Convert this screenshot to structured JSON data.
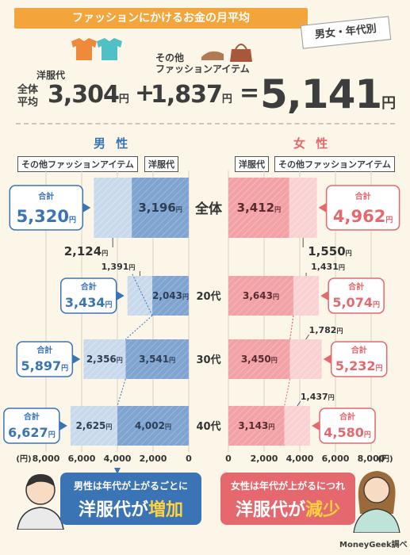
{
  "banner": "ファッションにかけるお金の月平均",
  "tag": "男女・年代別",
  "overall": {
    "label": "全体\n平均",
    "clothing_label": "洋服代",
    "clothing_value": "3,304",
    "other_label": "その他\nファッションアイテム",
    "other_value": "1,837",
    "total_value": "5,141",
    "yen": "円",
    "plus": "+",
    "equals": "="
  },
  "male_title": "男 性",
  "female_title": "女 性",
  "male_legend": {
    "other": "その他ファッションアイテム",
    "clothing": "洋服代"
  },
  "female_legend": {
    "clothing": "洋服代",
    "other": "その他ファッションアイテム"
  },
  "total_label": "合計",
  "colors": {
    "male_clothing": "#7fa4cf",
    "male_other": "#c9d9ec",
    "female_clothing": "#f2a1a6",
    "female_other": "#f9d1d2",
    "male_accent": "#3b74b5",
    "female_accent": "#e4686d",
    "banner": "#f3a43a"
  },
  "chart_data": {
    "type": "bar",
    "categories": [
      "全体",
      "20代",
      "30代",
      "40代"
    ],
    "unit": "円",
    "male": {
      "series": [
        {
          "name": "洋服代",
          "values": [
            3196,
            2043,
            3541,
            4002
          ]
        },
        {
          "name": "その他ファッションアイテム",
          "values": [
            2124,
            1391,
            2356,
            2625
          ]
        }
      ],
      "totals": [
        5320,
        3434,
        5897,
        6627
      ],
      "value_labels": {
        "clothing": [
          "3,196",
          "2,043",
          "3,541",
          "4,002"
        ],
        "other": [
          "2,124",
          "1,391",
          "2,356",
          "2,625"
        ]
      },
      "total_labels": [
        "5,320",
        "3,434",
        "5,897",
        "6,627"
      ]
    },
    "female": {
      "series": [
        {
          "name": "洋服代",
          "values": [
            3412,
            3643,
            3450,
            3143
          ]
        },
        {
          "name": "その他ファッションアイテム",
          "values": [
            1550,
            1431,
            1782,
            1437
          ]
        }
      ],
      "totals": [
        4962,
        5074,
        5232,
        4580
      ],
      "value_labels": {
        "clothing": [
          "3,412",
          "3,643",
          "3,450",
          "3,143"
        ],
        "other": [
          "1,550",
          "1,431",
          "1,782",
          "1,437"
        ]
      },
      "total_labels": [
        "4,962",
        "5,074",
        "5,232",
        "4,580"
      ]
    },
    "male_axis": {
      "ticks": [
        "8,000",
        "6,000",
        "4,000",
        "2,000",
        "0"
      ],
      "unit_label": "(円)",
      "range": [
        0,
        8000
      ]
    },
    "female_axis": {
      "ticks": [
        "0",
        "2,000",
        "4,000",
        "6,000",
        "8,000"
      ],
      "unit_label": "(円)",
      "range": [
        0,
        8000
      ]
    }
  },
  "male_callout": {
    "line1": "男性は年代が上がるごとに",
    "line2a": "洋服代が",
    "line2b": "増加"
  },
  "female_callout": {
    "line1": "女性は年代が上がるにつれ",
    "line2a": "洋服代が",
    "line2b": "減少"
  },
  "source": "MoneyGeek調べ"
}
